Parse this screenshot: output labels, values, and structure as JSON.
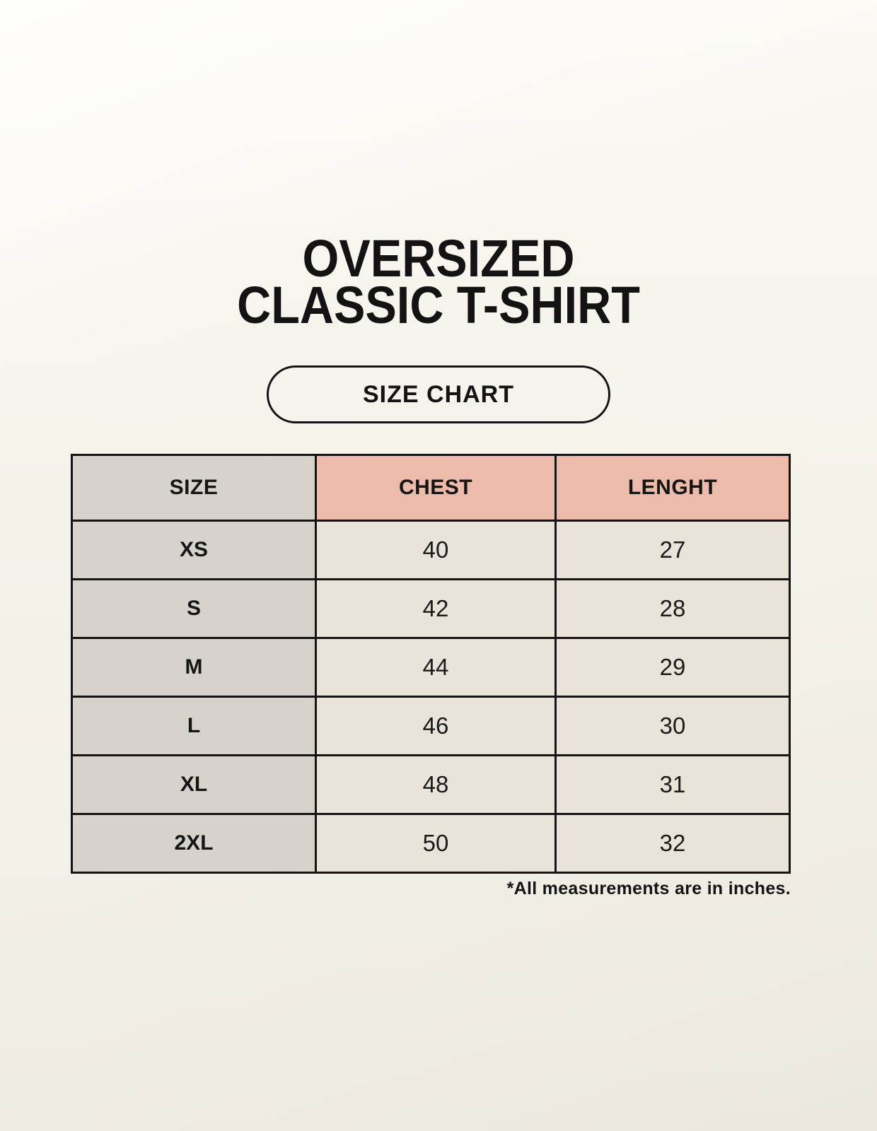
{
  "title": {
    "line1": "OVERSIZED",
    "line2": "CLASSIC T-SHIRT"
  },
  "badge": {
    "label": "SIZE CHART"
  },
  "footnote": "*All measurements are in inches.",
  "colors": {
    "background": "#f5f2ea",
    "header_accent_pink": "#edbbaa",
    "size_column_gray": "#d8d2cc",
    "data_cell_cream": "#e9e3d9",
    "border_black": "#141414"
  },
  "chart_data": {
    "type": "table",
    "title": "OVERSIZED CLASSIC T-SHIRT",
    "subtitle": "SIZE CHART",
    "columns": [
      "SIZE",
      "CHEST",
      "LENGHT"
    ],
    "rows": [
      [
        "XS",
        "40",
        "27"
      ],
      [
        "S",
        "42",
        "28"
      ],
      [
        "M",
        "44",
        "29"
      ],
      [
        "L",
        "46",
        "30"
      ],
      [
        "XL",
        "48",
        "31"
      ],
      [
        "2XL",
        "50",
        "32"
      ]
    ],
    "note": "*All measurements are in inches.",
    "units": "inches",
    "layout": {
      "header_row_fill": [
        "gray",
        "pink",
        "pink"
      ],
      "first_column_fill": "gray",
      "grid": true
    }
  }
}
